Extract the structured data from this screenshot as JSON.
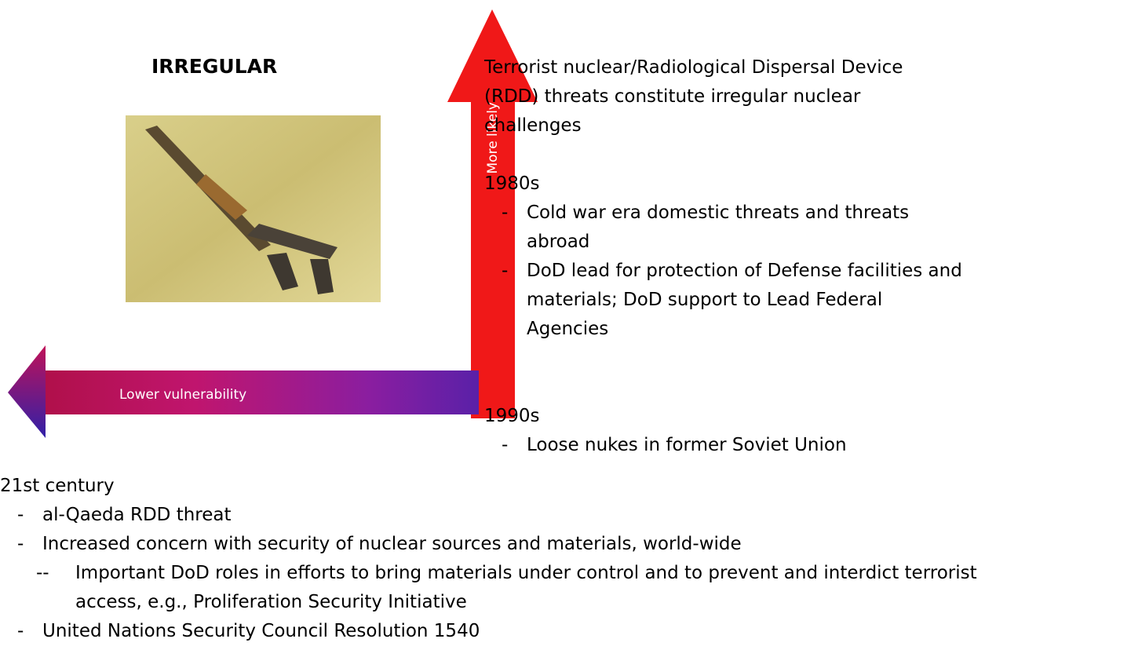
{
  "heading": "IRREGULAR",
  "arrows": {
    "vertical": "More likely",
    "horizontal": "Lower vulnerability"
  },
  "right": {
    "intro": "Terrorist nuclear/Radiological Dispersal Device (RDD) threats constitute irregular nuclear challenges",
    "sections": [
      {
        "label": "1980s",
        "items": [
          "Cold war era domestic threats and threats abroad",
          "DoD lead for protection of Defense facilities and materials; DoD support to Lead Federal Agencies"
        ]
      },
      {
        "label": "1990s",
        "items": [
          "Loose nukes in former Soviet Union"
        ]
      }
    ]
  },
  "bottom": {
    "label": "21st century",
    "items": [
      {
        "marker": "-",
        "text": "al-Qaeda RDD threat"
      },
      {
        "marker": "-",
        "text": "Increased concern with security of nuclear sources and materials, world-wide"
      },
      {
        "marker": "--",
        "text": "Important DoD roles in efforts to bring materials under control and to prevent and interdict terrorist access, e.g., Proliferation Security Initiative"
      },
      {
        "marker": "-",
        "text": "United Nations Security Council Resolution 1540"
      }
    ]
  }
}
